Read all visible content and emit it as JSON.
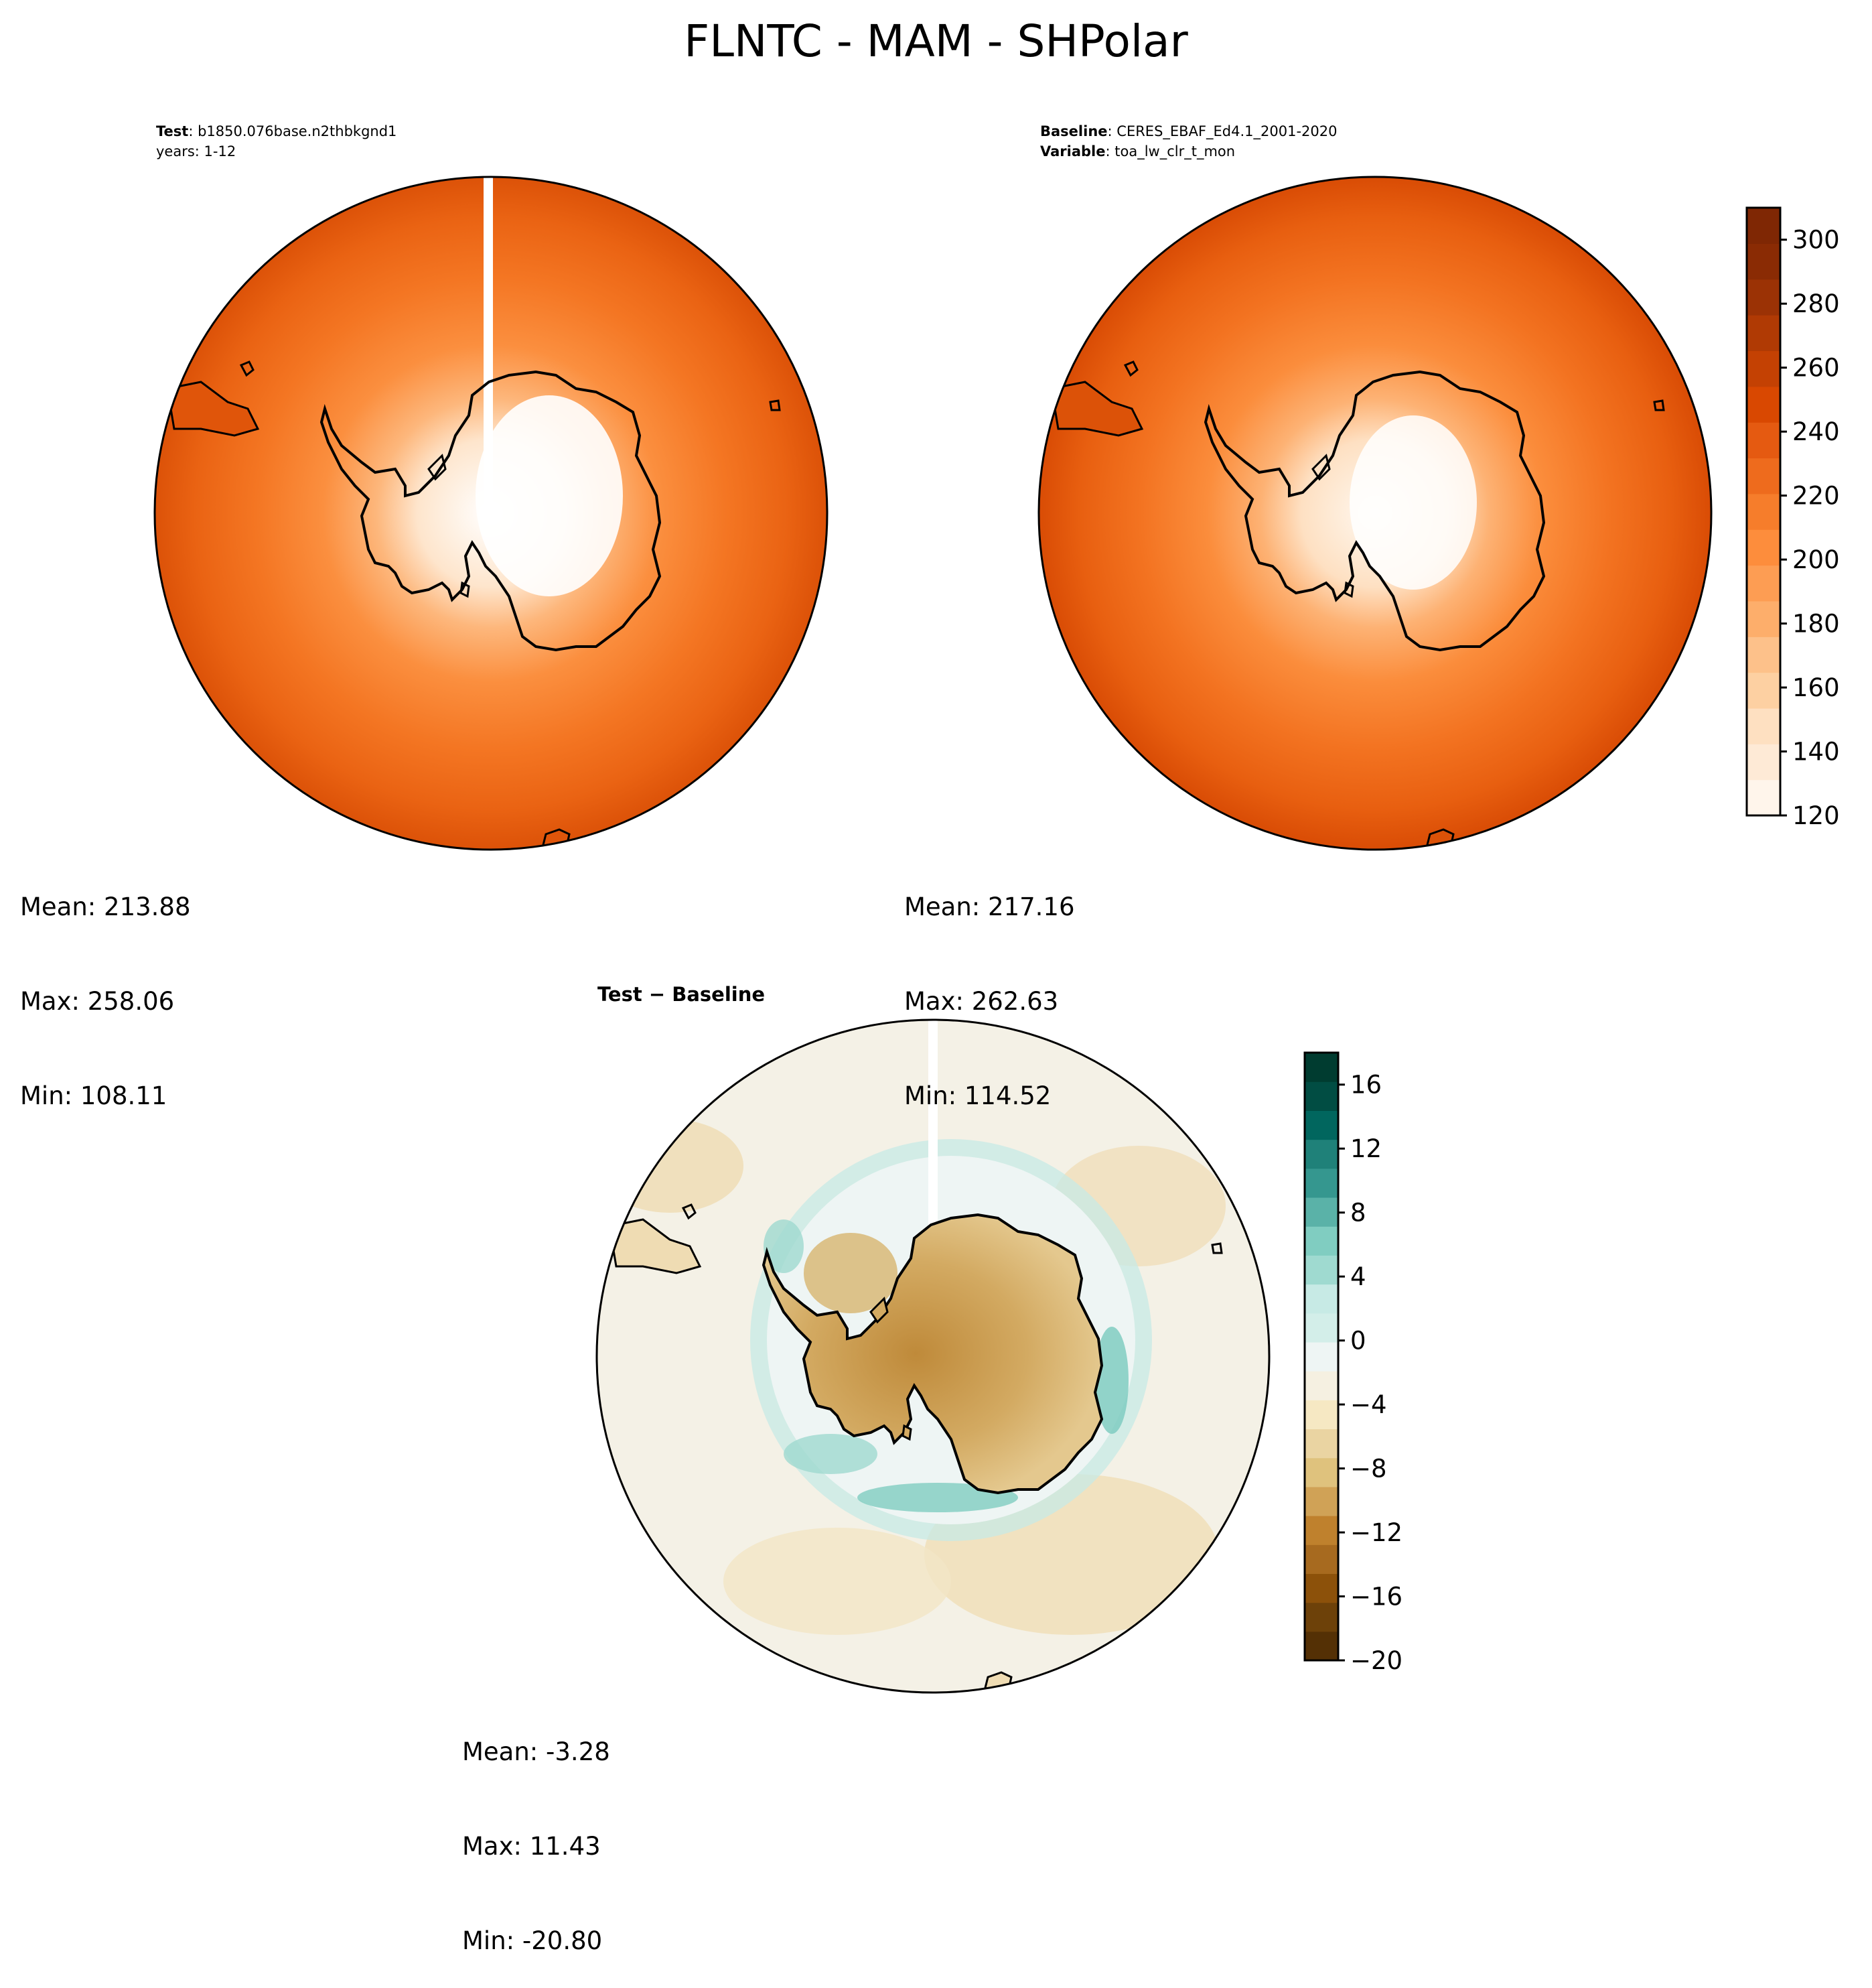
{
  "title": "FLNTC - MAM - SHPolar",
  "test_panel": {
    "label_key": "Test",
    "label_value": "b1850.076base.n2thbkgnd1",
    "years": "years: 1-12",
    "stats": {
      "mean": "Mean: 213.88",
      "max": "Max: 258.06",
      "min": "Min: 108.11"
    }
  },
  "baseline_panel": {
    "label_key": "Baseline",
    "label_value": "CERES_EBAF_Ed4.1_2001-2020",
    "variable_key": "Variable",
    "variable_value": "toa_lw_clr_t_mon",
    "stats": {
      "mean": "Mean: 217.16",
      "max": "Max: 262.63",
      "min": "Min: 114.52"
    }
  },
  "diff_panel": {
    "title": "Test − Baseline",
    "stats": {
      "mean": "Mean: -3.28",
      "max": "Max: 11.43",
      "min": "Min: -20.80"
    }
  },
  "colorbar_main": {
    "ticks": [
      "120",
      "140",
      "160",
      "180",
      "200",
      "220",
      "240",
      "260",
      "280",
      "300"
    ],
    "colors": [
      "#fff5eb",
      "#feead6",
      "#fee0c1",
      "#fdd0a2",
      "#fdc18a",
      "#fdae6b",
      "#fd9d53",
      "#fd8d3c",
      "#f67d2b",
      "#ee6b1d",
      "#e55a11",
      "#d94801",
      "#c44103",
      "#b03a04",
      "#9b3205",
      "#8a2b04",
      "#7f2704"
    ]
  },
  "colorbar_diff": {
    "ticks": [
      "−20",
      "−16",
      "−12",
      "−8",
      "−4",
      "0",
      "4",
      "8",
      "12",
      "16"
    ],
    "colors": [
      "#543005",
      "#6d4109",
      "#8c510a",
      "#a76a1f",
      "#bf812d",
      "#d0a256",
      "#dfc27d",
      "#ead4a2",
      "#f6e8c3",
      "#f5f0e1",
      "#eef5f4",
      "#d3eee9",
      "#c7eae5",
      "#9fdad0",
      "#80cdc1",
      "#5ab2a8",
      "#35978f",
      "#1f8179",
      "#01665e",
      "#014d43",
      "#003c30"
    ]
  },
  "chart_data": {
    "type": "heatmap",
    "projection": "south-polar-stereographic",
    "panels": [
      {
        "name": "Test",
        "mean": 213.88,
        "max": 258.06,
        "min": 108.11
      },
      {
        "name": "Baseline",
        "mean": 217.16,
        "max": 262.63,
        "min": 114.52
      },
      {
        "name": "Test − Baseline",
        "mean": -3.28,
        "max": 11.43,
        "min": -20.8
      }
    ],
    "colorbar_main_range": [
      120,
      310
    ],
    "colorbar_diff_range": [
      -20,
      18
    ]
  }
}
